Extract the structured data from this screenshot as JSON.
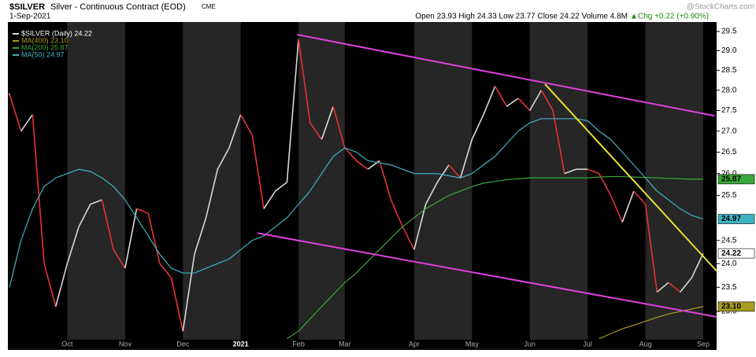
{
  "chart_data": {
    "type": "line",
    "symbol": "$SILVER",
    "title": "Silver - Continuous Contract (EOD)",
    "exchange": "CME",
    "date": "1-Sep-2021",
    "quote": "Open 23.93 High 24.33 Low 23.77 Close 24.22 Volume 4.8M",
    "change": "Chg +0.22 (+0.90%)",
    "source": "@StockCharts.com",
    "log_scale": true,
    "grid": false,
    "legend": "top-left",
    "ylim": [
      22.43,
      29.75
    ],
    "yticks": [
      {
        "value": 23,
        "label": "23.0"
      },
      23.5,
      {
        "value": 24,
        "label": "24.0"
      },
      24.5,
      25.5,
      {
        "value": 26,
        "label": "26.0"
      },
      26.5,
      {
        "value": 27,
        "label": "27.0"
      },
      27.5,
      {
        "value": 28,
        "label": "28.0"
      },
      28.5,
      {
        "value": 29,
        "label": "29.0"
      },
      29.5
    ],
    "categories": [
      null,
      null,
      null,
      null,
      null,
      "Oct",
      null,
      null,
      null,
      null,
      "Nov",
      null,
      null,
      null,
      null,
      "Dec",
      null,
      null,
      null,
      null,
      "2021",
      null,
      null,
      null,
      null,
      "Feb",
      null,
      null,
      null,
      "Mar",
      null,
      null,
      null,
      null,
      null,
      "Apr",
      null,
      null,
      null,
      null,
      "May",
      null,
      null,
      null,
      null,
      "Jun",
      null,
      null,
      null,
      null,
      "Jul",
      null,
      null,
      null,
      null,
      "Aug",
      null,
      null,
      null,
      null,
      "Sep"
    ],
    "series": [
      {
        "name": "$SILVER (Daily) 24.22",
        "badge": "24.22",
        "color": "#d8d8d8",
        "down_color": "#e53232",
        "style": "updown",
        "values": [
          27.9,
          27.0,
          27.4,
          24.0,
          23.1,
          24.0,
          24.8,
          25.3,
          25.4,
          24.3,
          23.9,
          25.2,
          25.1,
          24.0,
          23.7,
          22.6,
          24.2,
          25.0,
          26.1,
          26.6,
          27.4,
          26.9,
          25.2,
          25.6,
          25.8,
          29.3,
          27.2,
          26.8,
          27.6,
          26.6,
          26.3,
          26.1,
          26.3,
          25.4,
          24.8,
          24.3,
          25.3,
          25.8,
          26.2,
          25.9,
          26.8,
          27.4,
          28.1,
          27.6,
          27.8,
          27.5,
          28.0,
          27.5,
          26.0,
          26.1,
          26.1,
          26.0,
          25.5,
          24.9,
          25.6,
          25.3,
          23.4,
          23.6,
          23.4,
          23.7,
          24.22
        ]
      },
      {
        "name": "MA(400) 23.10",
        "badge": "23.10",
        "color": "#a89d1e",
        "values": [
          null,
          null,
          null,
          null,
          null,
          null,
          null,
          null,
          null,
          null,
          null,
          null,
          null,
          null,
          null,
          null,
          null,
          null,
          null,
          null,
          null,
          null,
          null,
          null,
          null,
          null,
          null,
          null,
          null,
          null,
          null,
          null,
          null,
          null,
          null,
          null,
          null,
          null,
          null,
          null,
          null,
          null,
          null,
          null,
          null,
          null,
          null,
          null,
          null,
          null,
          null,
          22.45,
          22.55,
          22.65,
          22.72,
          22.8,
          22.88,
          22.95,
          23.0,
          23.05,
          23.1
        ]
      },
      {
        "name": "MA(200) 25.87",
        "badge": "25.87",
        "color": "#3aa83a",
        "values": [
          null,
          null,
          null,
          null,
          null,
          null,
          null,
          null,
          null,
          null,
          null,
          null,
          null,
          null,
          null,
          null,
          null,
          null,
          null,
          null,
          null,
          null,
          null,
          null,
          22.45,
          22.6,
          22.85,
          23.1,
          23.35,
          23.6,
          23.8,
          24.05,
          24.3,
          24.55,
          24.8,
          25.0,
          25.2,
          25.35,
          25.5,
          25.6,
          25.7,
          25.78,
          25.82,
          25.86,
          25.88,
          25.9,
          25.9,
          25.9,
          25.9,
          25.9,
          25.9,
          25.92,
          25.93,
          25.93,
          25.92,
          25.91,
          25.9,
          25.89,
          25.88,
          25.87,
          25.87
        ]
      },
      {
        "name": "MA(50) 24.97",
        "badge": "24.97",
        "color": "#3fb3c4",
        "values": [
          23.5,
          24.5,
          25.2,
          25.7,
          25.9,
          26.0,
          26.1,
          26.05,
          25.9,
          25.7,
          25.4,
          25.0,
          24.6,
          24.2,
          23.9,
          23.8,
          23.8,
          23.9,
          24.0,
          24.1,
          24.3,
          24.5,
          24.6,
          24.8,
          25.0,
          25.3,
          25.6,
          26.0,
          26.4,
          26.6,
          26.5,
          26.3,
          26.25,
          26.2,
          26.1,
          26.0,
          26.0,
          26.0,
          25.95,
          25.9,
          26.0,
          26.2,
          26.4,
          26.7,
          27.0,
          27.2,
          27.3,
          27.3,
          27.3,
          27.3,
          27.25,
          27.0,
          26.8,
          26.5,
          26.2,
          25.9,
          25.6,
          25.4,
          25.2,
          25.05,
          24.97
        ]
      }
    ],
    "trendlines": [
      {
        "color": "#e040e0",
        "x": [
          24.86,
          60.97
        ],
        "y": [
          29.42,
          27.37
        ]
      },
      {
        "color": "#e040e0",
        "x": [
          21.46,
          61.17
        ],
        "y": [
          24.66,
          22.89
        ]
      },
      {
        "color": "#e8e030",
        "x": [
          46.32,
          61.17
        ],
        "y": [
          28.15,
          23.84
        ]
      }
    ]
  }
}
